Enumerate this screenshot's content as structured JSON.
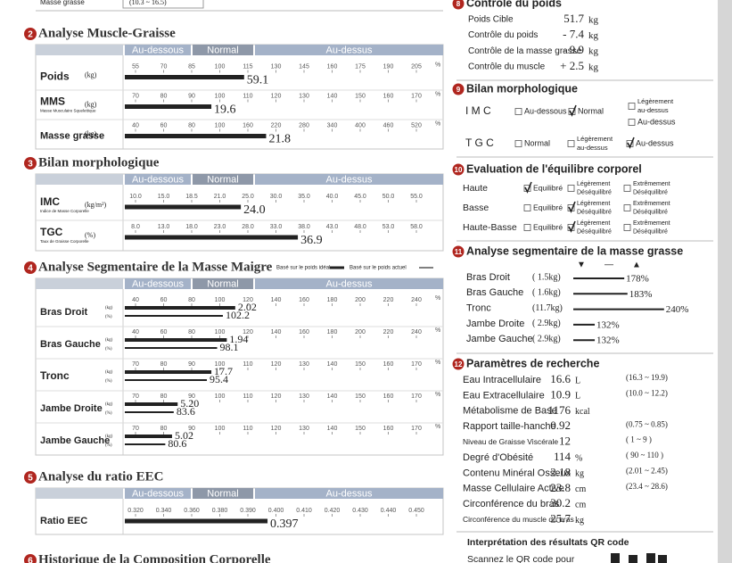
{
  "top_row": {
    "label": "Masse grasse",
    "range": "(10.3 ~ 16.5)"
  },
  "left_sections": [
    {
      "num": "2",
      "title": "Analyse Muscle-Graisse",
      "bands": [
        "Au-dessous",
        "Normal",
        "Au-dessus"
      ],
      "tick_unit": "%",
      "rows": [
        {
          "label": "Poids",
          "units": [
            "(kg)"
          ],
          "ticks": [
            "55",
            "70",
            "85",
            "100",
            "115",
            "130",
            "145",
            "160",
            "175",
            "190",
            "205"
          ],
          "values": [
            "59.1"
          ],
          "bars": [
            113
          ]
        },
        {
          "label": "MMS",
          "sub": "Masse Musculaire Squelettique",
          "units": [
            "(kg)"
          ],
          "ticks": [
            "70",
            "80",
            "90",
            "100",
            "110",
            "120",
            "130",
            "140",
            "150",
            "160",
            "170"
          ],
          "values": [
            "19.6"
          ],
          "bars": [
            97
          ]
        },
        {
          "label": "Masse grasse",
          "units": [
            "(kg)"
          ],
          "ticks": [
            "40",
            "60",
            "80",
            "100",
            "160",
            "220",
            "280",
            "340",
            "400",
            "460",
            "520"
          ],
          "values": [
            "21.8"
          ],
          "bars": [
            199
          ]
        }
      ]
    },
    {
      "num": "3",
      "title": "Bilan morphologique",
      "bands": [
        "Au-dessous",
        "Normal",
        "Au-dessus"
      ],
      "rows": [
        {
          "label": "IMC",
          "sub": "Indice de Masse Corporelle",
          "units": [
            "(kg/m²)"
          ],
          "ticks": [
            "10.0",
            "15.0",
            "18.5",
            "21.0",
            "25.0",
            "30.0",
            "35.0",
            "40.0",
            "45.0",
            "50.0",
            "55.0"
          ],
          "values": [
            "24.0"
          ],
          "bars": [
            24.0
          ]
        },
        {
          "label": "TGC",
          "sub": "Taux de Graisse Corporelle",
          "units": [
            "(%)"
          ],
          "ticks": [
            "8.0",
            "13.0",
            "18.0",
            "23.0",
            "28.0",
            "33.0",
            "38.0",
            "43.0",
            "48.0",
            "53.0",
            "58.0"
          ],
          "values": [
            "36.9"
          ],
          "bars": [
            36.9
          ]
        }
      ]
    },
    {
      "num": "4",
      "title": "Analyse Segmentaire de la Masse Maigre",
      "legend": [
        "Basé sur le poids idéal",
        "Basé sur le poids actuel"
      ],
      "bands": [
        "Au-dessous",
        "Normal",
        "Au-dessus"
      ],
      "tick_unit": "%",
      "rows": [
        {
          "label": "Bras Droit",
          "units": [
            "(kg)",
            "(%)"
          ],
          "ticks": [
            "40",
            "60",
            "80",
            "100",
            "120",
            "140",
            "160",
            "180",
            "200",
            "220",
            "240"
          ],
          "values": [
            "2.02",
            "102.2"
          ],
          "bars": [
            111,
            102.2
          ]
        },
        {
          "label": "Bras Gauche",
          "units": [
            "(kg)",
            "(%)"
          ],
          "ticks": [
            "40",
            "60",
            "80",
            "100",
            "120",
            "140",
            "160",
            "180",
            "200",
            "220",
            "240"
          ],
          "values": [
            "1.94",
            "98.1"
          ],
          "bars": [
            105,
            98.1
          ]
        },
        {
          "label": "Tronc",
          "units": [
            "(kg)",
            "(%)"
          ],
          "ticks": [
            "70",
            "80",
            "90",
            "100",
            "110",
            "120",
            "130",
            "140",
            "150",
            "160",
            "170"
          ],
          "values": [
            "17.7",
            "95.4"
          ],
          "bars": [
            97,
            95.4
          ]
        },
        {
          "label": "Jambe Droite",
          "units": [
            "(kg)",
            "(%)"
          ],
          "ticks": [
            "70",
            "80",
            "90",
            "100",
            "110",
            "120",
            "130",
            "140",
            "150",
            "160",
            "170"
          ],
          "values": [
            "5.20",
            "83.6"
          ],
          "bars": [
            85,
            83.6
          ]
        },
        {
          "label": "Jambe Gauche",
          "units": [
            "(kg)",
            "(%)"
          ],
          "ticks": [
            "70",
            "80",
            "90",
            "100",
            "110",
            "120",
            "130",
            "140",
            "150",
            "160",
            "170"
          ],
          "values": [
            "5.02",
            "80.6"
          ],
          "bars": [
            83,
            80.6
          ]
        }
      ]
    },
    {
      "num": "5",
      "title": "Analyse du ratio EEC",
      "bands": [
        "Au-dessous",
        "Normal",
        "Au-dessus"
      ],
      "rows": [
        {
          "label": "Ratio EEC",
          "units": [],
          "ticks": [
            "0.320",
            "0.340",
            "0.360",
            "0.380",
            "0.390",
            "0.400",
            "0.410",
            "0.420",
            "0.430",
            "0.440",
            "0.450"
          ],
          "values": [
            "0.397"
          ],
          "bars": [
            0.397
          ]
        }
      ]
    },
    {
      "num": "6",
      "title": "Historique de la Composition Corporelle",
      "rows": []
    }
  ],
  "weight_control": {
    "num": "8",
    "title": "Contrôle du poids",
    "rows": [
      {
        "label": "Poids Cible",
        "value": "51.7",
        "unit": "kg"
      },
      {
        "label": "Contrôle du poids",
        "value": "- 7.4",
        "unit": "kg"
      },
      {
        "label": "Contrôle de la masse grasse",
        "value": "- 9.9",
        "unit": "kg"
      },
      {
        "label": "Contrôle du muscle",
        "value": "+ 2.5",
        "unit": "kg"
      }
    ]
  },
  "morphology": {
    "num": "9",
    "title": "Bilan morphologique",
    "rows": [
      {
        "label": "I M C",
        "options": [
          {
            "lines": [
              "Au-dessous"
            ],
            "checked": false
          },
          {
            "lines": [
              "Normal"
            ],
            "checked": true
          },
          {
            "lines": [
              "Légèrement",
              "au-dessus"
            ],
            "checked": false
          },
          {
            "lines": [
              "Au-dessus"
            ],
            "checked": false
          }
        ]
      },
      {
        "label": "T G C",
        "options": [
          {
            "lines": [
              "Normal"
            ],
            "checked": false
          },
          {
            "lines": [
              "Légèrement",
              "au-dessus"
            ],
            "checked": false
          },
          {
            "lines": [
              "Au-dessus"
            ],
            "checked": true
          }
        ]
      }
    ]
  },
  "balance": {
    "num": "10",
    "title": "Evaluation de l'équilibre corporel",
    "rows": [
      {
        "label": "Haute",
        "options": [
          {
            "lines": [
              "Equilibré"
            ],
            "checked": true
          },
          {
            "lines": [
              "Légèrement",
              "Déséquilibré"
            ],
            "checked": false
          },
          {
            "lines": [
              "Extrêmement",
              "Déséquilibré"
            ],
            "checked": false
          }
        ]
      },
      {
        "label": "Basse",
        "options": [
          {
            "lines": [
              "Equilibré"
            ],
            "checked": false
          },
          {
            "lines": [
              "Légèrement",
              "Déséquilibré"
            ],
            "checked": true
          },
          {
            "lines": [
              "Extrêmement",
              "Déséquilibré"
            ],
            "checked": false
          }
        ]
      },
      {
        "label": "Haute-Basse",
        "options": [
          {
            "lines": [
              "Equilibré"
            ],
            "checked": false
          },
          {
            "lines": [
              "Légèrement",
              "Déséquilibré"
            ],
            "checked": true
          },
          {
            "lines": [
              "Extrêmement",
              "Déséquilibré"
            ],
            "checked": false
          }
        ]
      }
    ]
  },
  "segmental_fat": {
    "num": "11",
    "title": "Analyse segmentaire de la masse grasse",
    "markers": [
      "▼",
      "—",
      "▲"
    ],
    "rows": [
      {
        "label": "Bras Droit",
        "mass": "( 1.5kg)",
        "pct": 178,
        "pct_label": "178%"
      },
      {
        "label": "Bras Gauche",
        "mass": "( 1.6kg)",
        "pct": 183,
        "pct_label": "183%"
      },
      {
        "label": "Tronc",
        "mass": "(11.7kg)",
        "pct": 240,
        "pct_label": "240%"
      },
      {
        "label": "Jambe Droite",
        "mass": "( 2.9kg)",
        "pct": 132,
        "pct_label": "132%"
      },
      {
        "label": "Jambe Gauche",
        "mass": "( 2.9kg)",
        "pct": 132,
        "pct_label": "132%"
      }
    ]
  },
  "research": {
    "num": "12",
    "title": "Paramètres de recherche",
    "rows": [
      {
        "label": "Eau Intracellulaire",
        "value": "16.6",
        "unit": "L",
        "range": "(16.3 ~ 19.9)"
      },
      {
        "label": "Eau Extracellulaire",
        "value": "10.9",
        "unit": "L",
        "range": "(10.0 ~ 12.2)"
      },
      {
        "label": "Métabolisme de Base",
        "value": "1176",
        "unit": "kcal"
      },
      {
        "label": "Rapport taille-hanche",
        "value": "0.92",
        "range": "(0.75 ~ 0.85)"
      },
      {
        "label": "Niveau de Graisse Viscérale",
        "value": "12",
        "range": "(  1 ~ 9  )"
      },
      {
        "label": "Degré d'Obésité",
        "value": "114",
        "unit": "%",
        "range": "( 90 ~ 110 )"
      },
      {
        "label": "Contenu Minéral Osseux",
        "value": "2.18",
        "unit": "kg",
        "range": "(2.01 ~ 2.45)"
      },
      {
        "label": "Masse Cellulaire Active",
        "value": "23.8",
        "unit": "cm",
        "range": "(23.4 ~ 28.6)"
      },
      {
        "label": "Circonférence du bras",
        "value": "30.2",
        "unit": "cm"
      },
      {
        "label": "Circonférence du muscle du bras",
        "value": "25.7",
        "unit": "kg"
      }
    ]
  },
  "qr": {
    "title": "Interprétation des résultats QR code",
    "text": "Scannez le QR code pour"
  }
}
